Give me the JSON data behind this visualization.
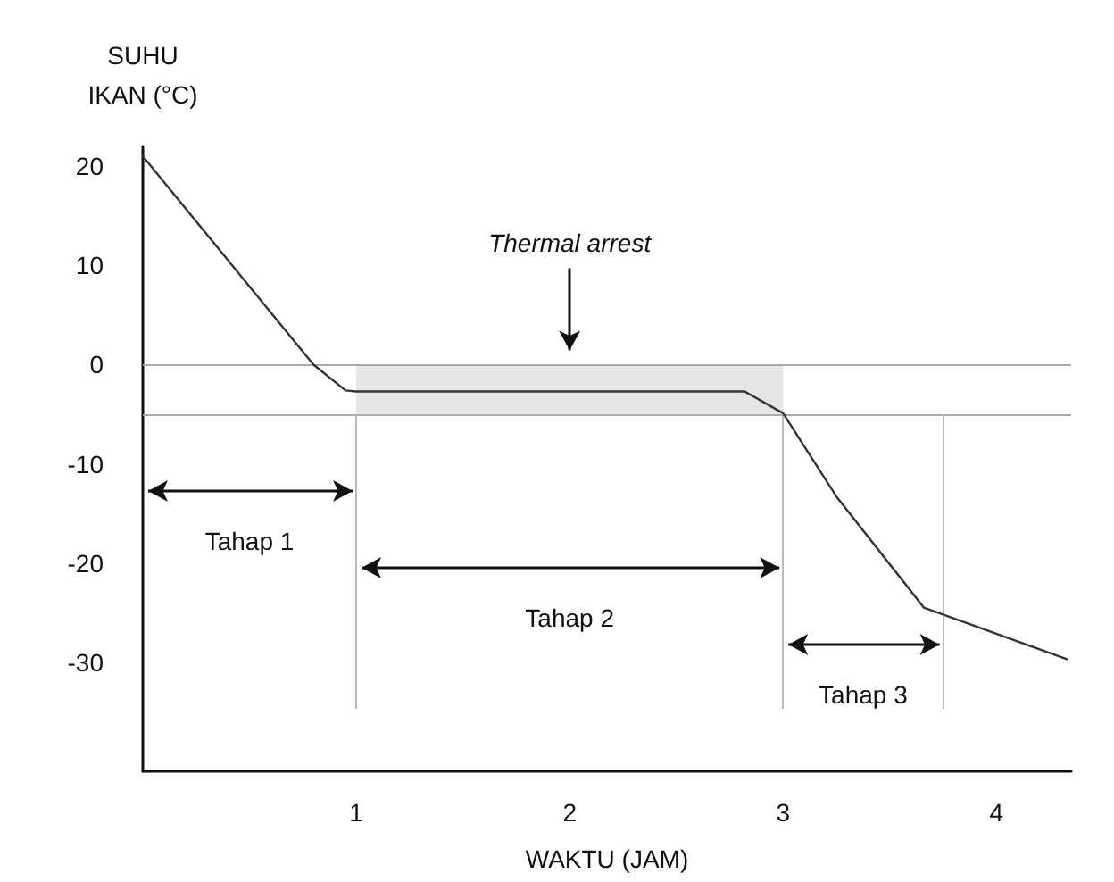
{
  "chart_data": {
    "type": "line",
    "xlabel": "WAKTU (JAM)",
    "ylabel": "SUHU\nIKAN (°C)",
    "x": [
      0,
      0.8,
      0.95,
      1,
      2,
      2.82,
      3,
      3.25,
      3.66,
      4.33
    ],
    "series": [
      {
        "color": "#333333",
        "values": [
          21,
          0,
          -2.6,
          -2.7,
          -2.7,
          -2.7,
          -4.9,
          -13.3,
          -24.5,
          -29.7
        ],
        "lower": [
          null,
          null,
          null,
          -5,
          -5,
          -5,
          -5,
          null,
          null,
          null
        ],
        "upper": [
          null,
          null,
          null,
          0,
          0,
          0,
          0,
          null,
          null,
          null
        ]
      }
    ],
    "xlim": [
      0,
      4.35
    ],
    "ylim": [
      -41,
      22
    ],
    "xticks": [
      1,
      2,
      3,
      4
    ],
    "yticks": [
      -30,
      -20,
      -10,
      0,
      10,
      20
    ],
    "ref_lines": [
      {
        "axis": "y",
        "value": 0,
        "color": "#aaaaaa"
      },
      {
        "axis": "y",
        "value": -5,
        "color": "#aaaaaa"
      },
      {
        "axis": "x",
        "value": 1,
        "color": "#bbbbbb"
      },
      {
        "axis": "x",
        "value": 3,
        "color": "#bbbbbb"
      },
      {
        "axis": "x",
        "value": 3.75,
        "color": "#bbbbbb"
      }
    ],
    "annotations": [
      "Thermal arrest",
      "Tahap 1",
      "Tahap 2",
      "Tahap 3"
    ],
    "grid": false,
    "marker": "none",
    "line_style": "solid"
  }
}
